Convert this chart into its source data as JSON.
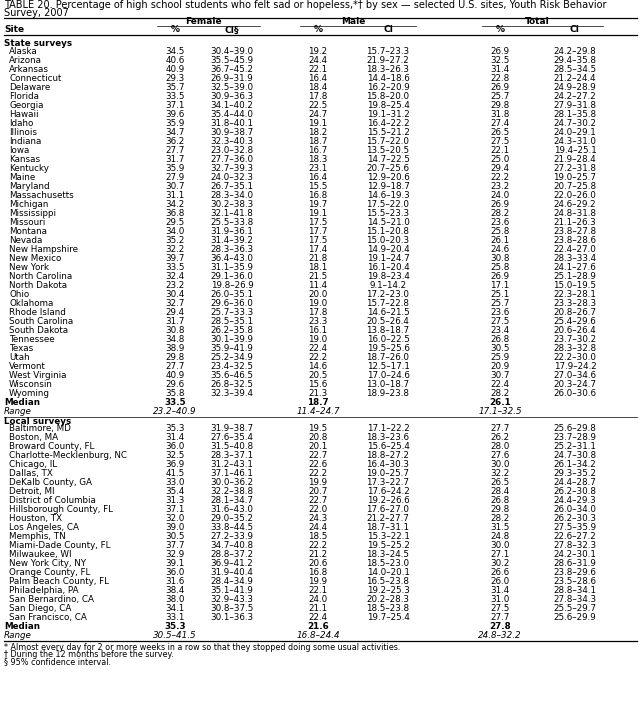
{
  "title_line1": "TABLE 20. Percentage of high school students who felt sad or hopeless,*† by sex — selected U.S. sites, Youth Risk Behavior",
  "title_line2": "Survey, 2007",
  "state_rows": [
    [
      "Alaska",
      "34.5",
      "30.4–39.0",
      "19.2",
      "15.7–23.3",
      "26.9",
      "24.2–29.8"
    ],
    [
      "Arizona",
      "40.6",
      "35.5–45.9",
      "24.4",
      "21.9–27.2",
      "32.5",
      "29.4–35.8"
    ],
    [
      "Arkansas",
      "40.9",
      "36.7–45.2",
      "22.1",
      "18.3–26.3",
      "31.4",
      "28.5–34.5"
    ],
    [
      "Connecticut",
      "29.3",
      "26.9–31.9",
      "16.4",
      "14.4–18.6",
      "22.8",
      "21.2–24.4"
    ],
    [
      "Delaware",
      "35.7",
      "32.5–39.0",
      "18.4",
      "16.2–20.9",
      "26.9",
      "24.9–28.9"
    ],
    [
      "Florida",
      "33.5",
      "30.9–36.3",
      "17.8",
      "15.8–20.0",
      "25.7",
      "24.2–27.2"
    ],
    [
      "Georgia",
      "37.1",
      "34.1–40.2",
      "22.5",
      "19.8–25.4",
      "29.8",
      "27.9–31.8"
    ],
    [
      "Hawaii",
      "39.6",
      "35.4–44.0",
      "24.7",
      "19.1–31.2",
      "31.8",
      "28.1–35.8"
    ],
    [
      "Idaho",
      "35.9",
      "31.8–40.1",
      "19.1",
      "16.4–22.2",
      "27.4",
      "24.7–30.2"
    ],
    [
      "Illinois",
      "34.7",
      "30.9–38.7",
      "18.2",
      "15.5–21.2",
      "26.5",
      "24.0–29.1"
    ],
    [
      "Indiana",
      "36.2",
      "32.3–40.3",
      "18.7",
      "15.7–22.0",
      "27.5",
      "24.3–31.0"
    ],
    [
      "Iowa",
      "27.7",
      "23.0–32.8",
      "16.7",
      "13.5–20.5",
      "22.1",
      "19.4–25.1"
    ],
    [
      "Kansas",
      "31.7",
      "27.7–36.0",
      "18.3",
      "14.7–22.5",
      "25.0",
      "21.9–28.4"
    ],
    [
      "Kentucky",
      "35.9",
      "32.7–39.3",
      "23.1",
      "20.7–25.6",
      "29.4",
      "27.2–31.8"
    ],
    [
      "Maine",
      "27.9",
      "24.0–32.3",
      "16.4",
      "12.9–20.6",
      "22.2",
      "19.0–25.7"
    ],
    [
      "Maryland",
      "30.7",
      "26.7–35.1",
      "15.5",
      "12.9–18.7",
      "23.2",
      "20.7–25.8"
    ],
    [
      "Massachusetts",
      "31.1",
      "28.3–34.0",
      "16.8",
      "14.6–19.3",
      "24.0",
      "22.0–26.0"
    ],
    [
      "Michigan",
      "34.2",
      "30.2–38.3",
      "19.7",
      "17.5–22.0",
      "26.9",
      "24.6–29.2"
    ],
    [
      "Mississippi",
      "36.8",
      "32.1–41.8",
      "19.1",
      "15.5–23.3",
      "28.2",
      "24.8–31.8"
    ],
    [
      "Missouri",
      "29.5",
      "25.5–33.8",
      "17.5",
      "14.5–21.0",
      "23.6",
      "21.1–26.3"
    ],
    [
      "Montana",
      "34.0",
      "31.9–36.1",
      "17.7",
      "15.1–20.8",
      "25.8",
      "23.8–27.8"
    ],
    [
      "Nevada",
      "35.2",
      "31.4–39.2",
      "17.5",
      "15.0–20.3",
      "26.1",
      "23.8–28.6"
    ],
    [
      "New Hampshire",
      "32.2",
      "28.3–36.3",
      "17.4",
      "14.9–20.4",
      "24.6",
      "22.4–27.0"
    ],
    [
      "New Mexico",
      "39.7",
      "36.4–43.0",
      "21.8",
      "19.1–24.7",
      "30.8",
      "28.3–33.4"
    ],
    [
      "New York",
      "33.5",
      "31.1–35.9",
      "18.1",
      "16.1–20.4",
      "25.8",
      "24.1–27.6"
    ],
    [
      "North Carolina",
      "32.4",
      "29.1–36.0",
      "21.5",
      "19.8–23.4",
      "26.9",
      "25.1–28.9"
    ],
    [
      "North Dakota",
      "23.2",
      "19.8–26.9",
      "11.4",
      "9.1–14.2",
      "17.1",
      "15.0–19.5"
    ],
    [
      "Ohio",
      "30.4",
      "26.0–35.1",
      "20.0",
      "17.2–23.0",
      "25.1",
      "22.3–28.1"
    ],
    [
      "Oklahoma",
      "32.7",
      "29.6–36.0",
      "19.0",
      "15.7–22.8",
      "25.7",
      "23.3–28.3"
    ],
    [
      "Rhode Island",
      "29.4",
      "25.7–33.3",
      "17.8",
      "14.6–21.5",
      "23.6",
      "20.8–26.7"
    ],
    [
      "South Carolina",
      "31.7",
      "28.5–35.1",
      "23.3",
      "20.5–26.4",
      "27.5",
      "25.4–29.6"
    ],
    [
      "South Dakota",
      "30.8",
      "26.2–35.8",
      "16.1",
      "13.8–18.7",
      "23.4",
      "20.6–26.4"
    ],
    [
      "Tennessee",
      "34.8",
      "30.1–39.9",
      "19.0",
      "16.0–22.5",
      "26.8",
      "23.7–30.2"
    ],
    [
      "Texas",
      "38.9",
      "35.9–41.9",
      "22.4",
      "19.5–25.6",
      "30.5",
      "28.3–32.8"
    ],
    [
      "Utah",
      "29.8",
      "25.2–34.9",
      "22.2",
      "18.7–26.0",
      "25.9",
      "22.2–30.0"
    ],
    [
      "Vermont",
      "27.7",
      "23.4–32.5",
      "14.6",
      "12.5–17.1",
      "20.9",
      "17.9–24.2"
    ],
    [
      "West Virginia",
      "40.9",
      "35.6–46.5",
      "20.5",
      "17.0–24.6",
      "30.7",
      "27.0–34.6"
    ],
    [
      "Wisconsin",
      "29.6",
      "26.8–32.5",
      "15.6",
      "13.0–18.7",
      "22.4",
      "20.3–24.7"
    ],
    [
      "Wyoming",
      "35.8",
      "32.3–39.4",
      "21.3",
      "18.9–23.8",
      "28.2",
      "26.0–30.6"
    ]
  ],
  "state_median": [
    "Median",
    "33.5",
    "",
    "18.7",
    "",
    "26.1",
    ""
  ],
  "state_range": [
    "Range",
    "23.2–40.9",
    "",
    "11.4–24.7",
    "",
    "17.1–32.5",
    ""
  ],
  "local_rows": [
    [
      "Baltimore, MD",
      "35.3",
      "31.9–38.7",
      "19.5",
      "17.1–22.2",
      "27.7",
      "25.6–29.8"
    ],
    [
      "Boston, MA",
      "31.4",
      "27.6–35.4",
      "20.8",
      "18.3–23.6",
      "26.2",
      "23.7–28.9"
    ],
    [
      "Broward County, FL",
      "36.0",
      "31.5–40.8",
      "20.1",
      "15.6–25.4",
      "28.0",
      "25.2–31.1"
    ],
    [
      "Charlotte-Mecklenburg, NC",
      "32.5",
      "28.3–37.1",
      "22.7",
      "18.8–27.2",
      "27.6",
      "24.7–30.8"
    ],
    [
      "Chicago, IL",
      "36.9",
      "31.2–43.1",
      "22.6",
      "16.4–30.3",
      "30.0",
      "26.1–34.2"
    ],
    [
      "Dallas, TX",
      "41.5",
      "37.1–46.1",
      "22.2",
      "19.0–25.7",
      "32.2",
      "29.3–35.2"
    ],
    [
      "DeKalb County, GA",
      "33.0",
      "30.0–36.2",
      "19.9",
      "17.3–22.7",
      "26.5",
      "24.4–28.7"
    ],
    [
      "Detroit, MI",
      "35.4",
      "32.2–38.8",
      "20.7",
      "17.6–24.2",
      "28.4",
      "26.2–30.8"
    ],
    [
      "District of Columbia",
      "31.3",
      "28.1–34.7",
      "22.7",
      "19.2–26.6",
      "26.8",
      "24.4–29.3"
    ],
    [
      "Hillsborough County, FL",
      "37.1",
      "31.6–43.0",
      "22.0",
      "17.6–27.0",
      "29.8",
      "26.0–34.0"
    ],
    [
      "Houston, TX",
      "32.0",
      "29.0–35.2",
      "24.3",
      "21.2–27.7",
      "28.2",
      "26.2–30.3"
    ],
    [
      "Los Angeles, CA",
      "39.0",
      "33.8–44.5",
      "24.4",
      "18.7–31.1",
      "31.5",
      "27.5–35.9"
    ],
    [
      "Memphis, TN",
      "30.5",
      "27.2–33.9",
      "18.5",
      "15.3–22.1",
      "24.8",
      "22.6–27.2"
    ],
    [
      "Miami-Dade County, FL",
      "37.7",
      "34.7–40.8",
      "22.2",
      "19.5–25.2",
      "30.0",
      "27.8–32.3"
    ],
    [
      "Milwaukee, WI",
      "32.9",
      "28.8–37.2",
      "21.2",
      "18.3–24.5",
      "27.1",
      "24.2–30.1"
    ],
    [
      "New York City, NY",
      "39.1",
      "36.9–41.2",
      "20.6",
      "18.5–23.0",
      "30.2",
      "28.6–31.9"
    ],
    [
      "Orange County, FL",
      "36.0",
      "31.9–40.4",
      "16.8",
      "14.0–20.1",
      "26.6",
      "23.8–29.6"
    ],
    [
      "Palm Beach County, FL",
      "31.6",
      "28.4–34.9",
      "19.9",
      "16.5–23.8",
      "26.0",
      "23.5–28.6"
    ],
    [
      "Philadelphia, PA",
      "38.4",
      "35.1–41.9",
      "22.1",
      "19.2–25.3",
      "31.4",
      "28.8–34.1"
    ],
    [
      "San Bernardino, CA",
      "38.0",
      "32.9–43.3",
      "24.0",
      "20.2–28.3",
      "31.0",
      "27.8–34.3"
    ],
    [
      "San Diego, CA",
      "34.1",
      "30.8–37.5",
      "21.1",
      "18.5–23.8",
      "27.5",
      "25.5–29.7"
    ],
    [
      "San Francisco, CA",
      "33.1",
      "30.1–36.3",
      "22.4",
      "19.7–25.4",
      "27.7",
      "25.6–29.9"
    ]
  ],
  "local_median": [
    "Median",
    "35.3",
    "",
    "21.6",
    "",
    "27.8",
    ""
  ],
  "local_range": [
    "Range",
    "30.5–41.5",
    "",
    "16.8–24.4",
    "",
    "24.8–32.2",
    ""
  ],
  "footnotes": [
    "* Almost every day for 2 or more weeks in a row so that they stopped doing some usual activities.",
    "† During the 12 months before the survey.",
    "§ 95% confidence interval."
  ]
}
